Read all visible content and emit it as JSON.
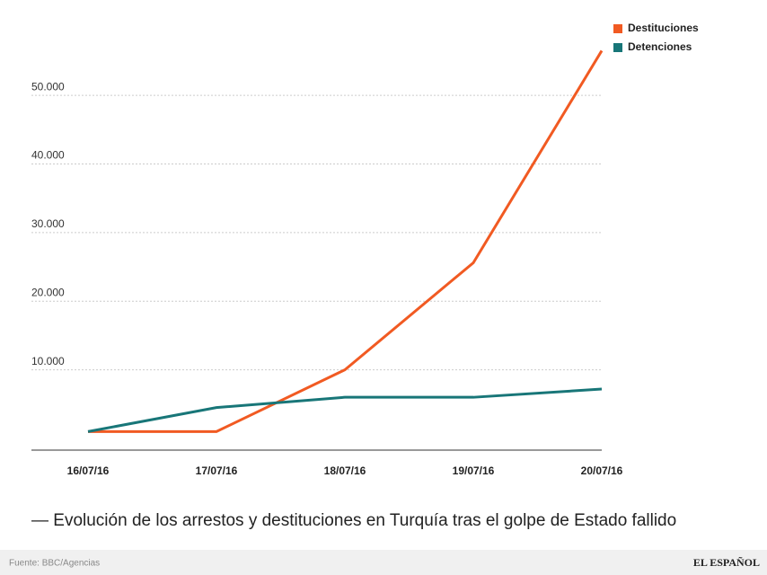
{
  "chart_data": {
    "type": "line",
    "title": "— Evolución de los arrestos y destituciones en Turquía tras el golpe de Estado fallido",
    "categories": [
      "16/07/16",
      "17/07/16",
      "18/07/16",
      "19/07/16",
      "20/07/16"
    ],
    "series": [
      {
        "name": "Destituciones",
        "color": "#f15a22",
        "values": [
          1000,
          1000,
          10000,
          25600,
          56500
        ]
      },
      {
        "name": "Detenciones",
        "color": "#187678",
        "values": [
          1000,
          4500,
          6000,
          6000,
          7200
        ]
      }
    ],
    "ylim": [
      -1700,
      58000
    ],
    "yticks": [
      {
        "value": 10000,
        "label": "10.000"
      },
      {
        "value": 20000,
        "label": "20.000"
      },
      {
        "value": 30000,
        "label": "30.000"
      },
      {
        "value": 40000,
        "label": "40.000"
      },
      {
        "value": 50000,
        "label": "50.000"
      }
    ],
    "grid": true,
    "legend": "top-right"
  },
  "footer": {
    "source": "Fuente: BBC/Agencias",
    "brand": "EL ESPAÑOL"
  }
}
